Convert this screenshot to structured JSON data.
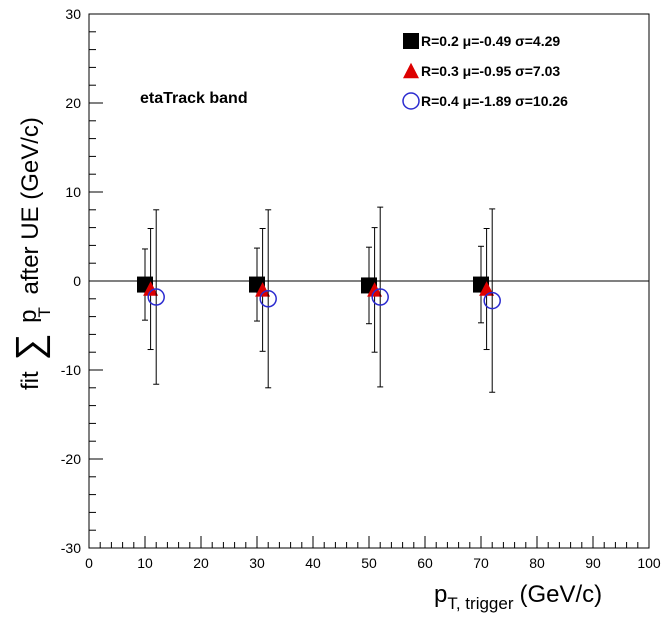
{
  "chart_data": {
    "type": "scatter",
    "xlim": [
      0,
      100
    ],
    "ylim": [
      -30,
      30
    ],
    "x_ticks": [
      0,
      10,
      20,
      30,
      40,
      50,
      60,
      70,
      80,
      90,
      100
    ],
    "y_ticks": [
      -30,
      -20,
      -10,
      0,
      10,
      20,
      30
    ],
    "xlabel": {
      "main": "p",
      "sub": "T, trigger",
      "unit": "(GeV/c)"
    },
    "ylabel": {
      "prefix": "fit",
      "symbol": "∑",
      "var": "p",
      "sub": "T",
      "suffix": "after UE (GeV/c)"
    },
    "annotation": "etaTrack band",
    "grid": false,
    "legend_position": "top-right",
    "series": [
      {
        "name": "R=0.2 μ=-0.49 σ=4.29",
        "marker": "square",
        "color": "#000000",
        "x": [
          10,
          30,
          50,
          70
        ],
        "y": [
          -0.4,
          -0.4,
          -0.5,
          -0.4
        ],
        "err": [
          4.0,
          4.1,
          4.3,
          4.3
        ]
      },
      {
        "name": "R=0.3 μ=-0.95 σ=7.03",
        "marker": "triangle",
        "color": "#dd0000",
        "x": [
          11,
          31,
          51,
          71
        ],
        "y": [
          -0.9,
          -1.0,
          -1.0,
          -0.9
        ],
        "err": [
          6.8,
          6.9,
          7.0,
          6.8
        ]
      },
      {
        "name": "R=0.4 μ=-1.89 σ=10.26",
        "marker": "open-circle",
        "color": "#2b2bd0",
        "x": [
          12,
          32,
          52,
          72
        ],
        "y": [
          -1.8,
          -2.0,
          -1.8,
          -2.2
        ],
        "err": [
          9.8,
          10.0,
          10.1,
          10.3
        ]
      }
    ]
  }
}
